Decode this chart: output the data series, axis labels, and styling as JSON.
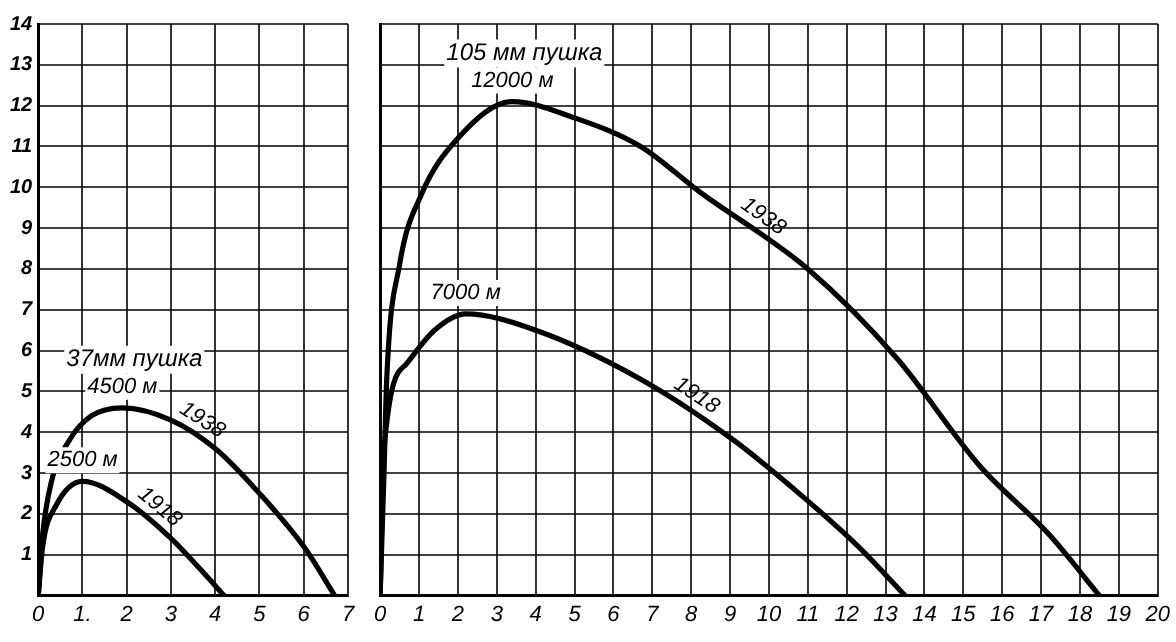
{
  "chart_data": [
    {
      "type": "line",
      "title": "37мм пушка",
      "xlim": [
        0,
        7
      ],
      "ylim": [
        0,
        14
      ],
      "xticks": [
        0,
        {
          "value": 1,
          "label": "1."
        },
        2,
        3,
        4,
        5,
        6,
        7
      ],
      "yticks": [
        {
          "value": 0,
          "label": null
        },
        1,
        2,
        3,
        4,
        5,
        6,
        7,
        8,
        9,
        10,
        11,
        12,
        13,
        14
      ],
      "grid": true,
      "legend": false,
      "marker": "none",
      "line_style": "solid",
      "series": [
        {
          "name": "1938",
          "color": "#000000",
          "x": [
            0,
            0.1,
            0.3,
            0.7,
            1.2,
            1.9,
            3,
            4,
            5,
            6,
            6.7
          ],
          "values": [
            0,
            1.5,
            2.8,
            3.8,
            4.4,
            4.6,
            4.3,
            3.6,
            2.5,
            1.2,
            0
          ]
        },
        {
          "name": "1918",
          "color": "#000000",
          "x": [
            0,
            0.1,
            0.4,
            1,
            2,
            3,
            3.7,
            4.2
          ],
          "values": [
            0,
            1.2,
            2.2,
            2.8,
            2.3,
            1.4,
            0.6,
            0
          ]
        }
      ],
      "annotations": [
        {
          "text": "4500 м",
          "x": 1.9,
          "y": 4.6
        },
        {
          "text": "2500 м",
          "x": 1,
          "y": 2.8
        }
      ]
    },
    {
      "type": "line",
      "title": "105 мм пушка",
      "xlim": [
        0,
        20
      ],
      "ylim": [
        0,
        14
      ],
      "xticks": [
        0,
        1,
        2,
        3,
        4,
        5,
        6,
        7,
        8,
        9,
        10,
        11,
        12,
        13,
        14,
        15,
        16,
        17,
        18,
        19,
        20
      ],
      "yticks": [
        0,
        1,
        2,
        3,
        4,
        5,
        6,
        7,
        8,
        9,
        10,
        11,
        12,
        13,
        14
      ],
      "tick_labels": "x",
      "grid": true,
      "legend": false,
      "marker": "none",
      "line_style": "solid",
      "series": [
        {
          "name": "1938",
          "color": "#000000",
          "x": [
            0,
            0.1,
            0.17,
            0.5,
            1.05,
            2,
            3.4,
            5,
            6.7,
            8.2,
            11,
            13.3,
            15.4,
            17.2,
            18.5
          ],
          "values": [
            0,
            3,
            5.3,
            8.1,
            9.8,
            11.2,
            12.1,
            11.7,
            11,
            9.9,
            8,
            5.8,
            3.2,
            1.5,
            0
          ]
        },
        {
          "name": "1918",
          "color": "#000000",
          "x": [
            0,
            0.1,
            0.7,
            1.4,
            2.2,
            4,
            6.7,
            9.1,
            10.9,
            12.3,
            13.5
          ],
          "values": [
            0,
            3.6,
            5.7,
            6.5,
            6.9,
            6.5,
            5.3,
            3.8,
            2.4,
            1.2,
            0
          ]
        }
      ],
      "annotations": [
        {
          "text": "12000 м",
          "x": 3.4,
          "y": 12.1
        },
        {
          "text": "7000 м",
          "x": 2.2,
          "y": 6.9
        }
      ]
    }
  ]
}
